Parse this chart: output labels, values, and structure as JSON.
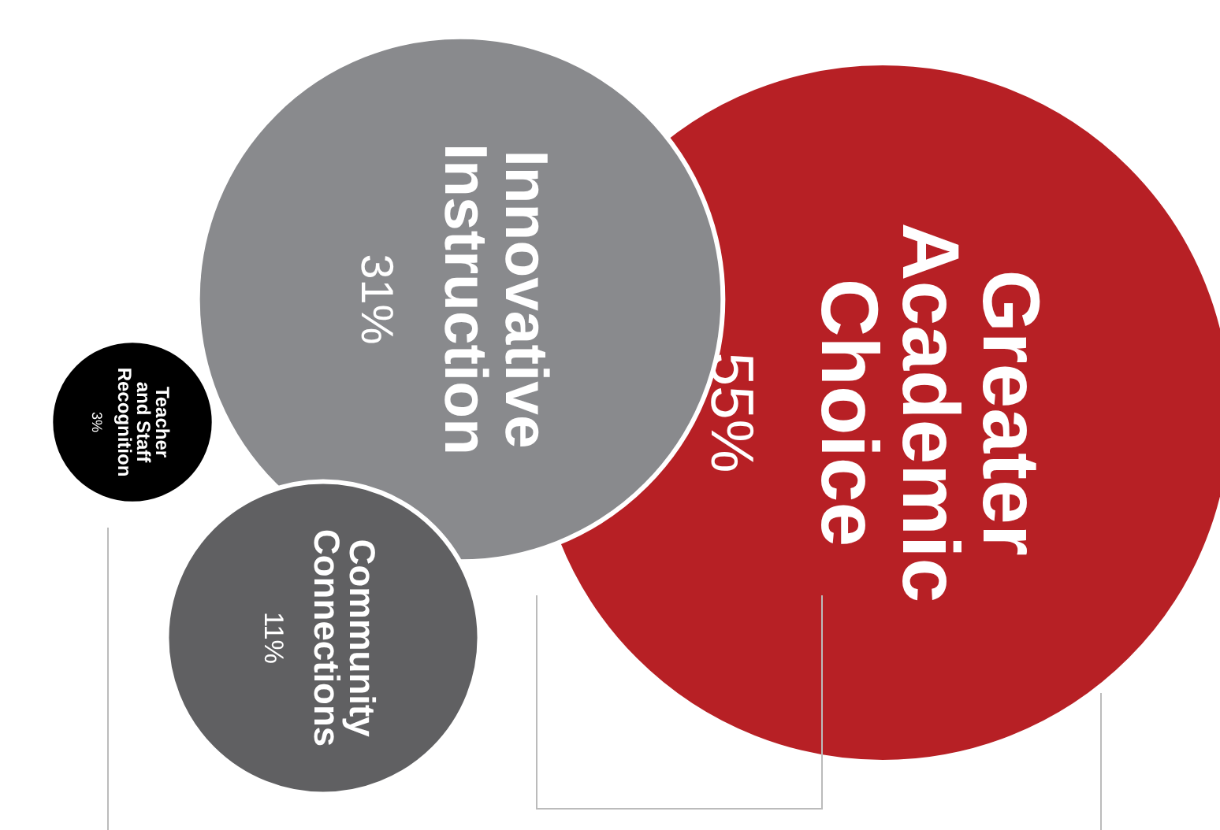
{
  "chart_data": {
    "type": "other",
    "categories": [
      "Greater Academic Choice",
      "Innovative Instruction",
      "Community Connections",
      "Teacher and Staff Recognition"
    ],
    "values": [
      55,
      31,
      11,
      3
    ],
    "value_labels": [
      "55%",
      "31%",
      "11%",
      "3%"
    ],
    "colors": [
      "#b72025",
      "#898a8d",
      "#606062",
      "#000000"
    ]
  }
}
